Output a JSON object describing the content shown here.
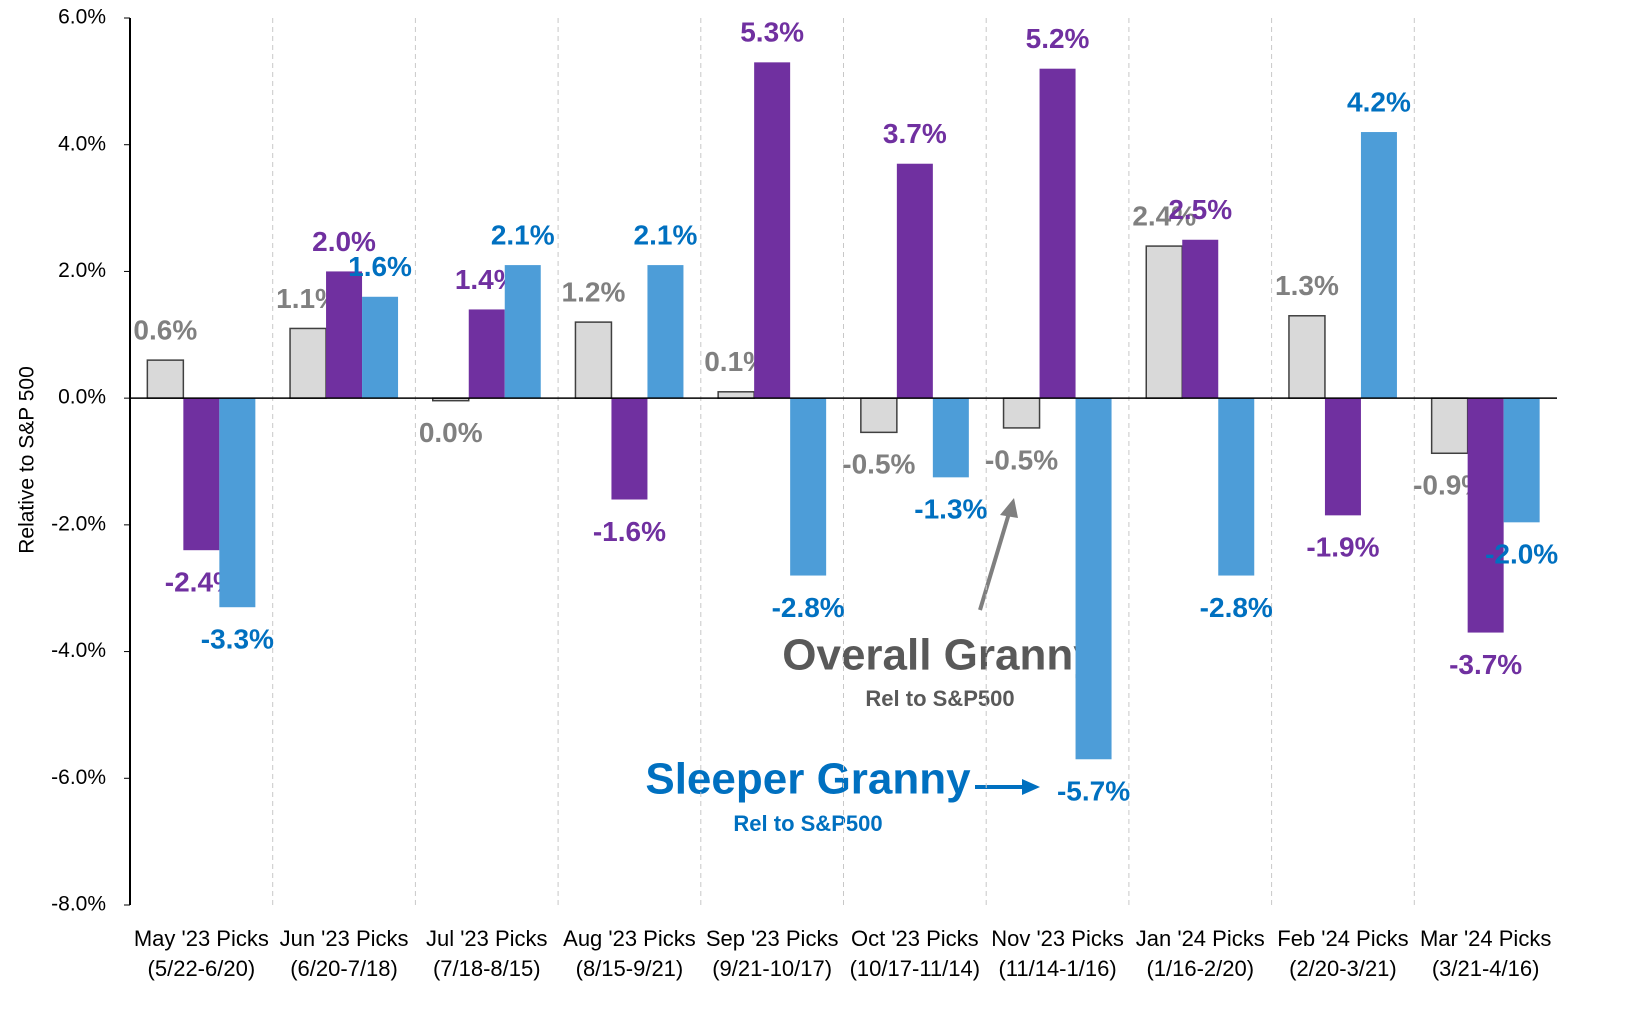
{
  "chart_data": {
    "type": "bar",
    "y_axis_label": "Relative to S&P 500",
    "categories": [
      [
        "May '23 Picks",
        "(5/22-6/20)"
      ],
      [
        "Jun '23 Picks",
        "(6/20-7/18)"
      ],
      [
        "Jul '23 Picks",
        "(7/18-8/15)"
      ],
      [
        "Aug '23 Picks",
        "(8/15-9/21)"
      ],
      [
        "Sep '23 Picks",
        "(9/21-10/17)"
      ],
      [
        "Oct '23 Picks",
        "(10/17-11/14)"
      ],
      [
        "Nov '23 Picks",
        "(11/14-1/16)"
      ],
      [
        "Jan '24 Picks",
        "(1/16-2/20)"
      ],
      [
        "Feb '24 Picks",
        "(2/20-3/21)"
      ],
      [
        "Mar '24 Picks",
        "(3/21-4/16)"
      ]
    ],
    "series": [
      {
        "name": "Overall Granny",
        "color": "#d9d9d9",
        "label_color": "#808080",
        "values": [
          0.6,
          1.1,
          -0.04,
          1.2,
          0.1,
          -0.54,
          -0.47,
          2.4,
          1.3,
          -0.87
        ],
        "value_labels": [
          "0.6%",
          "1.1%",
          "0.0%",
          "1.2%",
          "0.1%",
          "-0.5%",
          "-0.5%",
          "2.4%",
          "1.3%",
          "-0.9%"
        ]
      },
      {
        "color": "#7030a0",
        "label_color": "#7030a0",
        "values": [
          -2.4,
          2.0,
          1.4,
          -1.6,
          5.3,
          3.7,
          5.2,
          2.5,
          -1.85,
          -3.7
        ],
        "value_labels": [
          "-2.4%",
          "2.0%",
          "1.4%",
          "-1.6%",
          "5.3%",
          "3.7%",
          "5.2%",
          "2.5%",
          "-1.9%",
          "-3.7%"
        ]
      },
      {
        "name": "Sleeper Granny",
        "color": "#4d9dd8",
        "label_color": "#0070c0",
        "values": [
          -3.3,
          1.6,
          2.1,
          2.1,
          -2.8,
          -1.25,
          -5.7,
          -2.8,
          4.2,
          -1.96
        ],
        "value_labels": [
          "-3.3%",
          "1.6%",
          "2.1%",
          "2.1%",
          "-2.8%",
          "-1.3%",
          "-5.7%",
          "-2.8%",
          "4.2%",
          "-2.0%"
        ]
      }
    ],
    "annotations": [
      "Rel to S&P500",
      "Rel to S&P500"
    ],
    "ylim": [
      -8,
      6
    ],
    "yticks": [
      {
        "value": -8,
        "label": "-8.0%"
      },
      {
        "value": -6,
        "label": "-6.0%"
      },
      {
        "value": -4,
        "label": "-4.0%"
      },
      {
        "value": -2,
        "label": "-2.0%"
      },
      {
        "value": 0,
        "label": "0.0%"
      },
      {
        "value": 2,
        "label": "2.0%"
      },
      {
        "value": 4,
        "label": "4.0%"
      },
      {
        "value": 6,
        "label": "6.0%"
      }
    ],
    "grid": true
  }
}
